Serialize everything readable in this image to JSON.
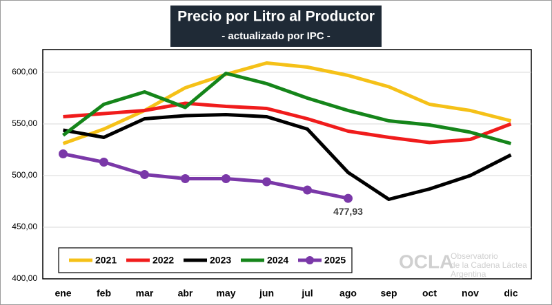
{
  "chart_data": {
    "type": "line",
    "title": "Precio por Litro al Productor",
    "subtitle": "- actualizado por IPC -",
    "categories": [
      "ene",
      "feb",
      "mar",
      "abr",
      "may",
      "jun",
      "jul",
      "ago",
      "sep",
      "oct",
      "nov",
      "dic"
    ],
    "series": [
      {
        "name": "2021",
        "color": "#f5c118",
        "values": [
          531,
          545,
          563,
          585,
          598,
          609,
          605,
          597,
          586,
          569,
          563,
          553
        ]
      },
      {
        "name": "2022",
        "color": "#f01c1c",
        "values": [
          557,
          560,
          563,
          570,
          567,
          565,
          555,
          543,
          537,
          532,
          535,
          550
        ]
      },
      {
        "name": "2023",
        "color": "#000000",
        "values": [
          544,
          537,
          555,
          558,
          559,
          557,
          545,
          503,
          477,
          487,
          500,
          520
        ]
      },
      {
        "name": "2024",
        "color": "#15851a",
        "values": [
          539,
          569,
          581,
          566,
          599,
          589,
          575,
          563,
          553,
          549,
          542,
          531
        ]
      },
      {
        "name": "2025",
        "color": "#7a38a8",
        "markers": true,
        "values": [
          521,
          513,
          501,
          497,
          497,
          494,
          486,
          477.93,
          null,
          null,
          null,
          null
        ],
        "value_labels": [
          null,
          null,
          null,
          null,
          null,
          null,
          null,
          "477,93",
          null,
          null,
          null,
          null
        ]
      }
    ],
    "ylim": [
      400,
      622
    ],
    "yticks": [
      {
        "value": 400,
        "label": "400,00"
      },
      {
        "value": 450,
        "label": "450,00"
      },
      {
        "value": 500,
        "label": "500,00"
      },
      {
        "value": 550,
        "label": "550,00"
      },
      {
        "value": 600,
        "label": "600,00"
      }
    ],
    "grid": true,
    "legend": "bottom-left",
    "watermark": {
      "logo": "OCLA",
      "lines": [
        "Observatorio",
        "de la Cadena Láctea",
        "Argentina"
      ]
    }
  }
}
